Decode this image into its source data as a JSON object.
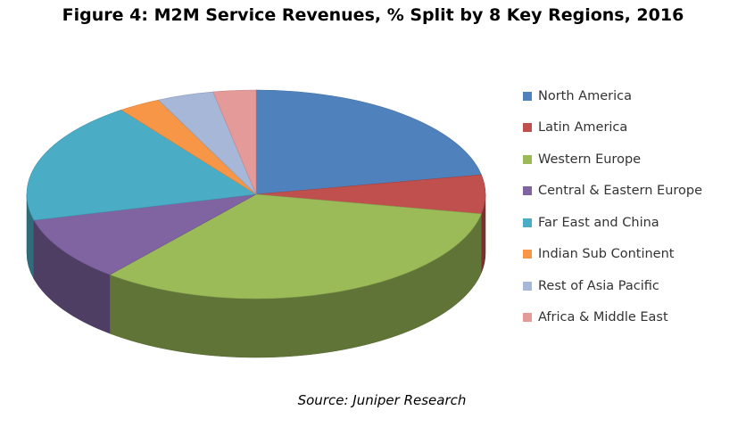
{
  "title": "Figure 4: M2M Service Revenues, % Split by 8 Key Regions, 2016",
  "source": "Source: Juniper Research",
  "chart_data": {
    "type": "pie",
    "three_d": true,
    "legend_position": "right",
    "categories": [
      "North America",
      "Latin America",
      "Western Europe",
      "Central & Eastern Europe",
      "Far East and China",
      "Indian Sub Continent",
      "Rest of Asia Pacific",
      "Africa & Middle East"
    ],
    "values": [
      22,
      6,
      33,
      10,
      19,
      3,
      4,
      3
    ],
    "colors": [
      "#4f81bd",
      "#c0504d",
      "#9bbb59",
      "#8064a2",
      "#4bacc6",
      "#f79646",
      "#a6b7d8",
      "#e59a9a"
    ]
  }
}
